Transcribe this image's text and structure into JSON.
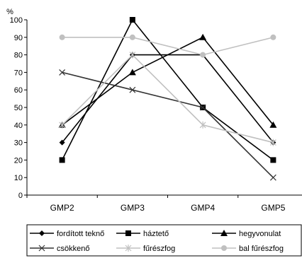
{
  "chart_data": {
    "type": "line",
    "ylabel": "%",
    "ylim": [
      0,
      100
    ],
    "yticks": [
      0,
      10,
      20,
      30,
      40,
      50,
      60,
      70,
      80,
      90,
      100
    ],
    "categories": [
      "GMP2",
      "GMP3",
      "GMP4",
      "GMP5"
    ],
    "legend_position": "bottom",
    "grid": false,
    "series": [
      {
        "name": "fordított teknő",
        "marker": "diamond",
        "color": "#000000",
        "values": [
          30,
          80,
          80,
          30
        ]
      },
      {
        "name": "háztető",
        "marker": "square",
        "color": "#000000",
        "values": [
          20,
          100,
          50,
          20
        ]
      },
      {
        "name": "hegyvonulat",
        "marker": "triangle",
        "color": "#000000",
        "values": [
          40,
          70,
          90,
          40
        ]
      },
      {
        "name": "csökkenő",
        "marker": "x",
        "color": "#333333",
        "values": [
          70,
          60,
          50,
          10
        ]
      },
      {
        "name": "fűrészfog",
        "marker": "star",
        "color": "#c0c0c0",
        "values": [
          40,
          80,
          40,
          30
        ]
      },
      {
        "name": "bal fűrészfog",
        "marker": "circle",
        "color": "#c0c0c0",
        "values": [
          90,
          90,
          80,
          90
        ]
      }
    ]
  }
}
